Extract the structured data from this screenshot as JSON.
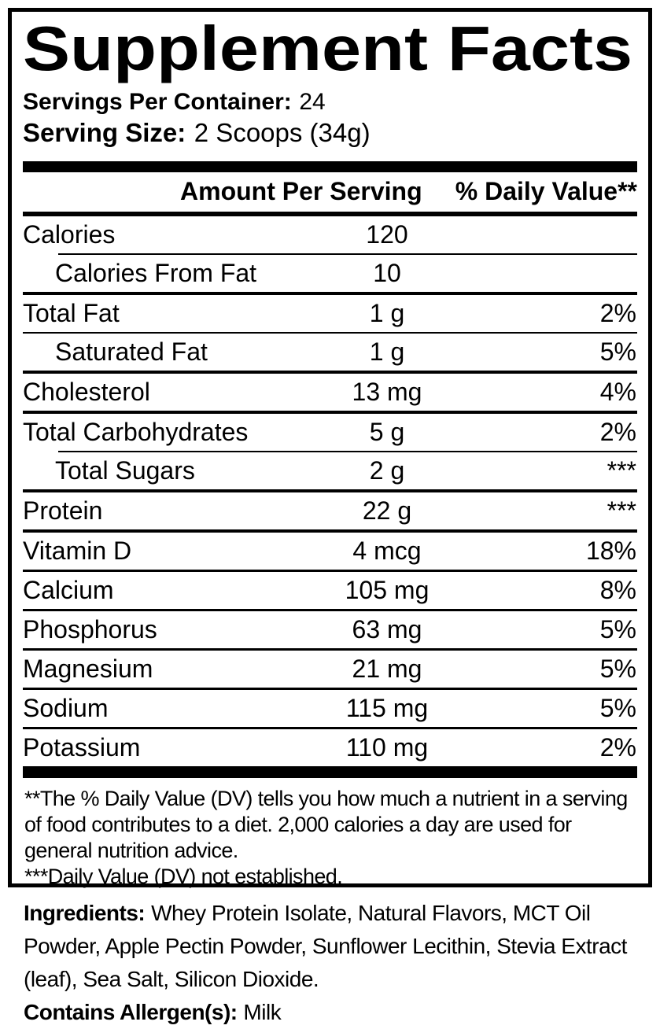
{
  "colors": {
    "ink": "#000000",
    "background": "#ffffff"
  },
  "panel": {
    "title": "Supplement Facts",
    "servings_label": "Servings Per Container:",
    "servings_value": "24",
    "serving_size_label": "Serving Size:",
    "serving_size_value": "2 Scoops (34g)",
    "columns": {
      "amount": "Amount Per Serving",
      "dv": "% Daily Value**"
    },
    "rows": [
      {
        "name": "Calories",
        "amount": "120",
        "dv": "",
        "indent": false,
        "divider": "none"
      },
      {
        "name": "Calories From Fat",
        "amount": "10",
        "dv": "",
        "indent": true,
        "divider": "indent"
      },
      {
        "name": "Total Fat",
        "amount": "1 g",
        "dv": "2%",
        "indent": false,
        "divider": "thick"
      },
      {
        "name": "Saturated Fat",
        "amount": "1 g",
        "dv": "5%",
        "indent": true,
        "divider": "thin"
      },
      {
        "name": "Cholesterol",
        "amount": "13 mg",
        "dv": "4%",
        "indent": false,
        "divider": "thick"
      },
      {
        "name": "Total Carbohydrates",
        "amount": "5 g",
        "dv": "2%",
        "indent": false,
        "divider": "thick"
      },
      {
        "name": "Total Sugars",
        "amount": "2 g",
        "dv": "***",
        "indent": true,
        "divider": "indent"
      },
      {
        "name": "Protein",
        "amount": "22 g",
        "dv": "***",
        "indent": false,
        "divider": "thick"
      },
      {
        "name": "Vitamin D",
        "amount": "4 mcg",
        "dv": "18%",
        "indent": false,
        "divider": "thick"
      },
      {
        "name": "Calcium",
        "amount": "105 mg",
        "dv": "8%",
        "indent": false,
        "divider": "regular"
      },
      {
        "name": "Phosphorus",
        "amount": "63 mg",
        "dv": "5%",
        "indent": false,
        "divider": "regular"
      },
      {
        "name": "Magnesium",
        "amount": "21 mg",
        "dv": "5%",
        "indent": false,
        "divider": "regular"
      },
      {
        "name": "Sodium",
        "amount": "115 mg",
        "dv": "5%",
        "indent": false,
        "divider": "regular"
      },
      {
        "name": "Potassium",
        "amount": "110 mg",
        "dv": "2%",
        "indent": false,
        "divider": "regular"
      }
    ],
    "footnotes": [
      "**The % Daily Value (DV) tells you how much a nutrient in a serving of food contributes to a diet. 2,000 calories a day are used for general nutrition advice.",
      "***Daily Value (DV) not established."
    ]
  },
  "ingredients": {
    "label": "Ingredients:",
    "text": "Whey Protein Isolate, Natural Flavors, MCT Oil Powder, Apple Pectin Powder, Sunflower Lecithin, Stevia Extract (leaf), Sea Salt, Silicon Dioxide.",
    "allergen_label": "Contains Allergen(s):",
    "allergen_value": "Milk"
  }
}
